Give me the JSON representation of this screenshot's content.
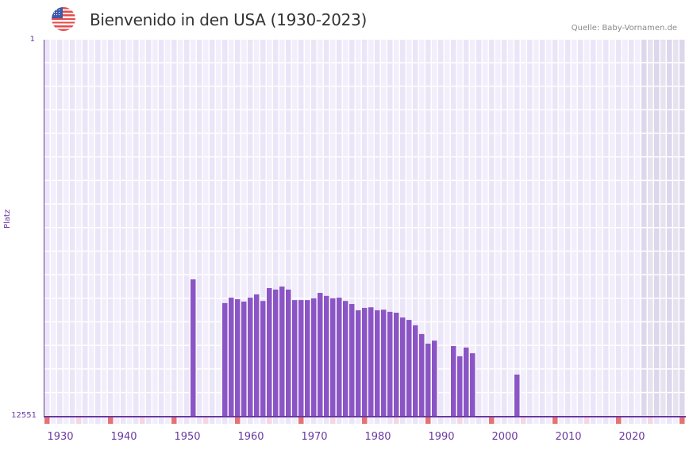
{
  "header": {
    "title": "Bienvenido in den USA (1930-2023)",
    "source": "Quelle: Baby-Vornamen.de",
    "flag_icon": "us-flag-icon"
  },
  "colors": {
    "bar": "#8b55c6",
    "axis": "#6a3aa0",
    "grid_cell_a": "#f2eefb",
    "grid_cell_b": "#ebe5f8",
    "future_cell_a": "#e6e2f0",
    "future_cell_b": "#ddd7ec",
    "decade_marker": "#e57373",
    "half_decade_marker": "#f6d6e0"
  },
  "chart_data": {
    "type": "bar",
    "title": "Bienvenido in den USA (1930-2023)",
    "xlabel": "",
    "ylabel": "Platz",
    "y_inverted": true,
    "ylim": [
      1,
      12551
    ],
    "xlim": [
      1928,
      2028
    ],
    "y_ticks": [
      "1",
      "12551"
    ],
    "x_ticks": [
      "1930",
      "1940",
      "1950",
      "1960",
      "1970",
      "1980",
      "1990",
      "2000",
      "2010",
      "2020"
    ],
    "grid": true,
    "legend": null,
    "categories": [
      1951,
      1956,
      1957,
      1958,
      1959,
      1960,
      1961,
      1962,
      1963,
      1964,
      1965,
      1966,
      1967,
      1968,
      1969,
      1970,
      1971,
      1972,
      1973,
      1974,
      1975,
      1976,
      1977,
      1978,
      1979,
      1980,
      1981,
      1982,
      1983,
      1984,
      1985,
      1986,
      1987,
      1988,
      1989,
      1992,
      1993,
      1994,
      1995,
      2002
    ],
    "values": [
      7980,
      8770,
      8590,
      8640,
      8720,
      8590,
      8480,
      8700,
      8270,
      8320,
      8220,
      8320,
      8670,
      8670,
      8670,
      8610,
      8430,
      8530,
      8610,
      8590,
      8700,
      8800,
      9010,
      8930,
      8910,
      9010,
      8990,
      9060,
      9090,
      9250,
      9330,
      9510,
      9800,
      10120,
      10020,
      10200,
      10540,
      10250,
      10440,
      11150
    ]
  },
  "axis": {
    "y_label": "Platz",
    "y_top": "1",
    "y_bottom": "12551",
    "x_labels": [
      "1930",
      "1940",
      "1950",
      "1960",
      "1970",
      "1980",
      "1990",
      "2000",
      "2010",
      "2020"
    ]
  }
}
